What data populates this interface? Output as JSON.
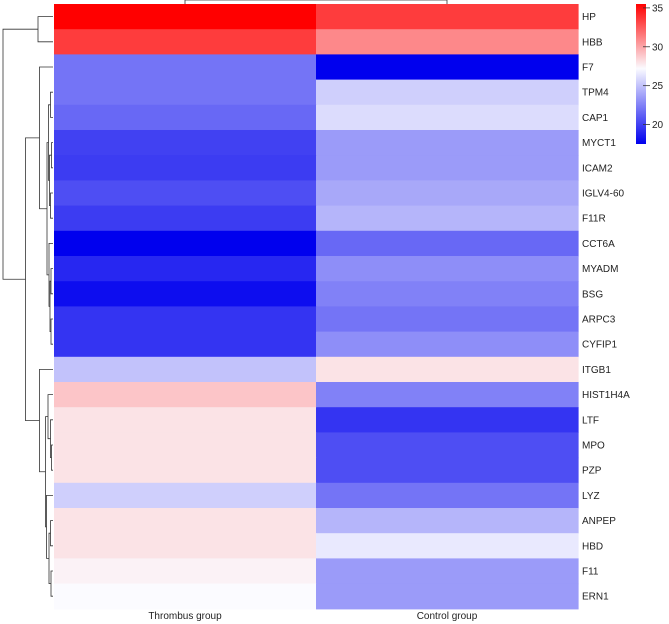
{
  "chart_data": {
    "type": "heatmap",
    "title": "",
    "columns": [
      "Thrombus group",
      "Control group"
    ],
    "rows": [
      "HP",
      "HBB",
      "F7",
      "TPM4",
      "CAP1",
      "MYCT1",
      "ICAM2",
      "IGLV4-60",
      "F11R",
      "CCT6A",
      "MYADM",
      "BSG",
      "ARPC3",
      "CYFIP1",
      "ITGB1",
      "HIST1H4A",
      "LTF",
      "MPO",
      "PZP",
      "LYZ",
      "ANPEP",
      "HBD",
      "F11",
      "ERN1"
    ],
    "values": [
      [
        35.5,
        33.5
      ],
      [
        33.5,
        31.0
      ],
      [
        22.0,
        17.5
      ],
      [
        22.0,
        25.5
      ],
      [
        21.5,
        26.0
      ],
      [
        20.0,
        23.5
      ],
      [
        19.8,
        23.5
      ],
      [
        20.5,
        24.0
      ],
      [
        19.8,
        24.5
      ],
      [
        17.5,
        21.5
      ],
      [
        19.0,
        23.0
      ],
      [
        18.0,
        22.5
      ],
      [
        19.5,
        22.0
      ],
      [
        19.5,
        23.0
      ],
      [
        25.0,
        28.0
      ],
      [
        29.0,
        22.5
      ],
      [
        28.0,
        19.5
      ],
      [
        28.0,
        20.5
      ],
      [
        28.0,
        20.5
      ],
      [
        25.5,
        22.0
      ],
      [
        28.0,
        24.5
      ],
      [
        28.0,
        26.5
      ],
      [
        27.5,
        23.5
      ],
      [
        27.2,
        23.5
      ]
    ],
    "color_scale": {
      "min": 17.5,
      "mid": 27.2,
      "max": 35.5,
      "low_color": "#0000ee",
      "mid_color": "#fbfbff",
      "high_color": "#ff0000"
    },
    "legend": {
      "ticks": [
        "35",
        "30",
        "25",
        "20"
      ],
      "tick_values": [
        35,
        30,
        25,
        20
      ],
      "range": [
        17.5,
        35.5
      ]
    },
    "row_dendrogram": {
      "leaves": [
        "HP",
        "HBB",
        "F7",
        "TPM4",
        "CAP1",
        "MYCT1",
        "ICAM2",
        "IGLV4-60",
        "F11R",
        "CCT6A",
        "MYADM",
        "BSG",
        "ARPC3",
        "CYFIP1",
        "ITGB1",
        "HIST1H4A",
        "LTF",
        "MPO",
        "PZP",
        "LYZ",
        "ANPEP",
        "HBD",
        "F11",
        "ERN1"
      ],
      "merges": [
        {
          "a": "HP",
          "b": "HBB",
          "height": 0.3
        },
        {
          "a": "TPM4",
          "b": "CAP1",
          "height": 0.05
        },
        {
          "a": "MYCT1",
          "b": "ICAM2",
          "height": 0.03
        },
        {
          "a": "IGLV4-60",
          "b": "F11R",
          "height": 0.05
        },
        {
          "a": "g2",
          "b": "g3",
          "height": 0.07
        },
        {
          "a": "g1",
          "b": "g4",
          "height": 0.09
        },
        {
          "a": "MYADM",
          "b": "BSG",
          "height": 0.04
        },
        {
          "a": "ARPC3",
          "b": "CYFIP1",
          "height": 0.04
        },
        {
          "a": "g6",
          "b": "g7",
          "height": 0.06
        },
        {
          "a": "CCT6A",
          "b": "g8",
          "height": 0.08
        },
        {
          "a": "g5",
          "b": "g9",
          "height": 0.12
        },
        {
          "a": "F7",
          "b": "g10",
          "height": 0.27
        },
        {
          "a": "MPO",
          "b": "PZP",
          "height": 0.03
        },
        {
          "a": "LTF",
          "b": "g12",
          "height": 0.05
        },
        {
          "a": "HIST1H4A",
          "b": "g13",
          "height": 0.1
        },
        {
          "a": "HBD",
          "b": "ANPEP",
          "height": 0.05
        },
        {
          "a": "F11",
          "b": "ERN1",
          "height": 0.04
        },
        {
          "a": "g15",
          "b": "g16",
          "height": 0.08
        },
        {
          "a": "LYZ",
          "b": "g17",
          "height": 0.13
        },
        {
          "a": "g14",
          "b": "g18",
          "height": 0.15
        },
        {
          "a": "ITGB1",
          "b": "g19",
          "height": 0.27
        },
        {
          "a": "g11",
          "b": "g20",
          "height": 0.55
        },
        {
          "a": "g0",
          "b": "g21",
          "height": 1.0
        }
      ]
    },
    "column_dendrogram": {
      "leaves": [
        "Thrombus group",
        "Control group"
      ],
      "merges": [
        {
          "a": "Thrombus group",
          "b": "Control group",
          "height": 1.0
        }
      ]
    }
  }
}
